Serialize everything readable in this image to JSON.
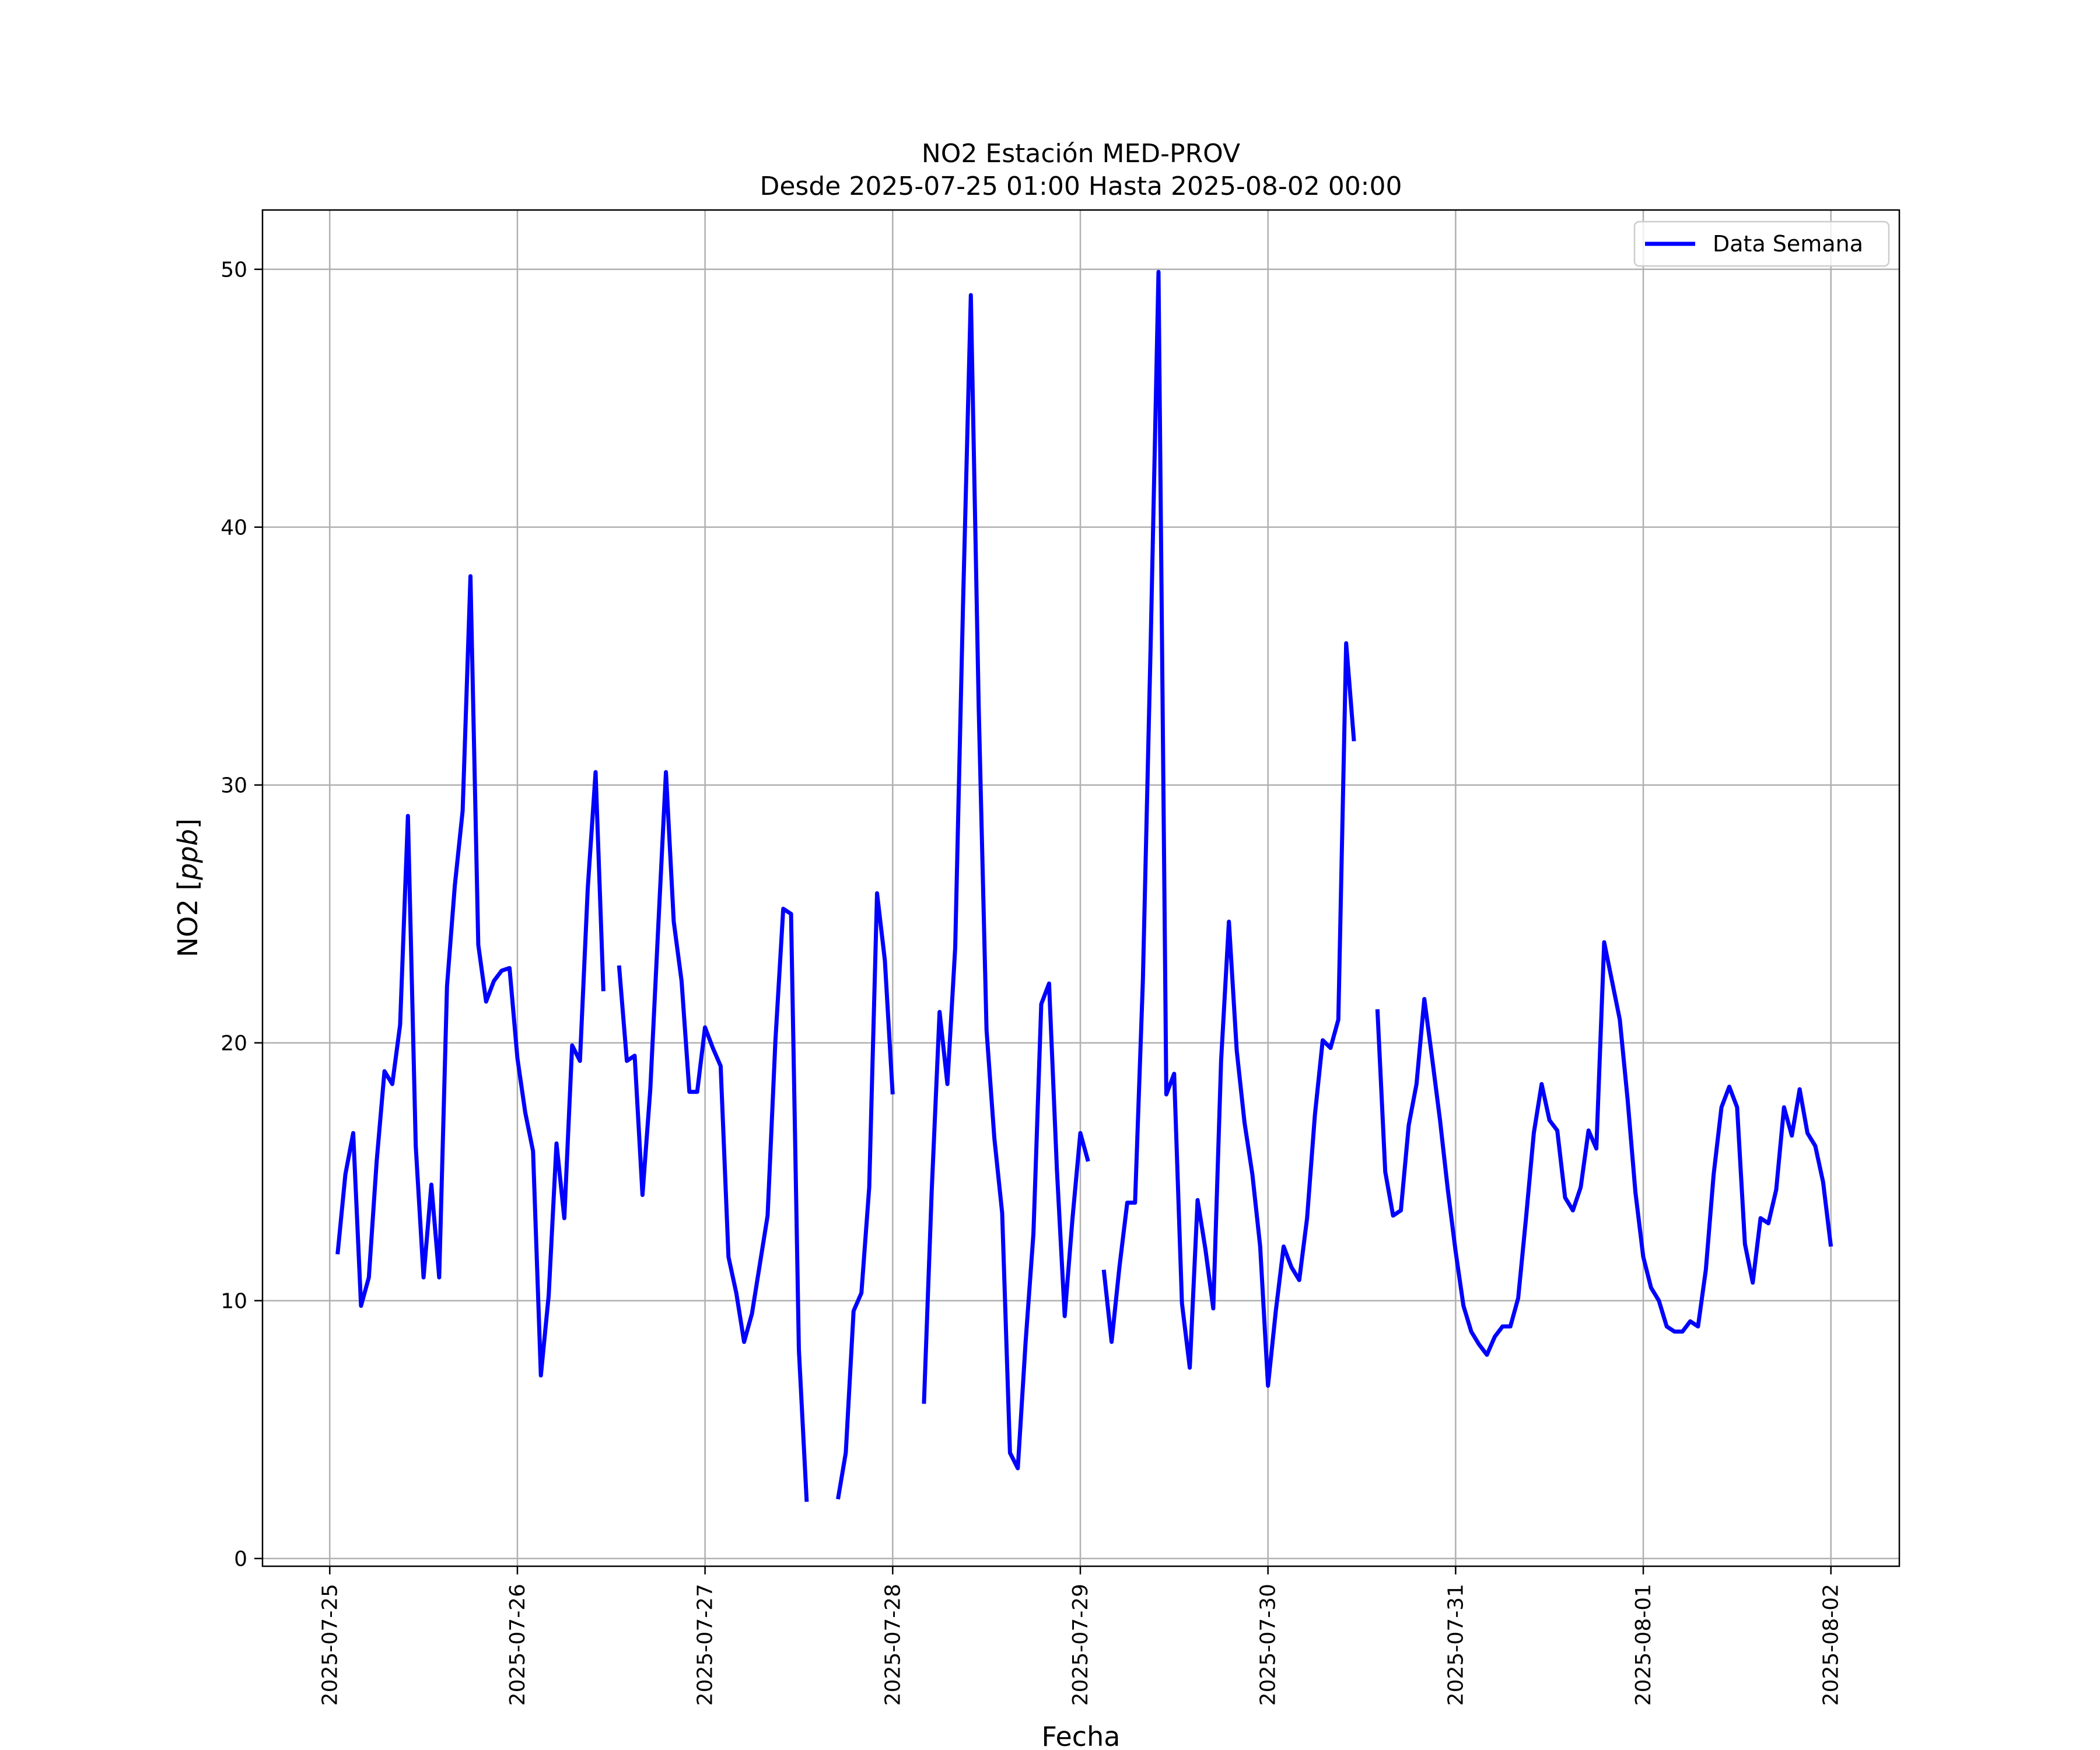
{
  "chart_data": {
    "type": "line",
    "title": "NO2 Estación MED-PROV",
    "subtitle": "Desde 2025-07-25 01:00 Hasta 2025-08-02 00:00",
    "xlabel": "Fecha",
    "ylabel": "NO2 [ppb]",
    "xlim": [
      "2025-07-24 15:24",
      "2025-08-02 08:45"
    ],
    "ylim": [
      -0.3,
      52.3
    ],
    "x_tick_labels": [
      "2025-07-25",
      "2025-07-26",
      "2025-07-27",
      "2025-07-28",
      "2025-07-29",
      "2025-07-30",
      "2025-07-31",
      "2025-08-01",
      "2025-08-02"
    ],
    "y_ticks": [
      0,
      10,
      20,
      30,
      40,
      50
    ],
    "grid": true,
    "legend": {
      "position": "top-right",
      "entries": [
        "Data Semana"
      ]
    },
    "series": [
      {
        "name": "Data Semana",
        "color": "#0000ff",
        "points": [
          [
            "2025-07-25 01:00",
            11.8
          ],
          [
            "2025-07-25 02:00",
            14.9
          ],
          [
            "2025-07-25 03:00",
            16.5
          ],
          [
            "2025-07-25 04:00",
            9.8
          ],
          [
            "2025-07-25 05:00",
            10.9
          ],
          [
            "2025-07-25 06:00",
            15.4
          ],
          [
            "2025-07-25 07:00",
            18.9
          ],
          [
            "2025-07-25 08:00",
            18.4
          ],
          [
            "2025-07-25 09:00",
            20.7
          ],
          [
            "2025-07-25 10:00",
            28.8
          ],
          [
            "2025-07-25 11:00",
            16.0
          ],
          [
            "2025-07-25 12:00",
            10.9
          ],
          [
            "2025-07-25 13:00",
            14.5
          ],
          [
            "2025-07-25 14:00",
            10.9
          ],
          [
            "2025-07-25 15:00",
            22.2
          ],
          [
            "2025-07-25 16:00",
            26.1
          ],
          [
            "2025-07-25 17:00",
            29.0
          ],
          [
            "2025-07-25 18:00",
            38.1
          ],
          [
            "2025-07-25 19:00",
            23.8
          ],
          [
            "2025-07-25 20:00",
            21.6
          ],
          [
            "2025-07-25 21:00",
            22.4
          ],
          [
            "2025-07-25 22:00",
            22.8
          ],
          [
            "2025-07-25 23:00",
            22.9
          ],
          [
            "2025-07-26 00:00",
            19.4
          ],
          [
            "2025-07-26 01:00",
            17.3
          ],
          [
            "2025-07-26 02:00",
            15.8
          ],
          [
            "2025-07-26 03:00",
            7.1
          ],
          [
            "2025-07-26 04:00",
            10.2
          ],
          [
            "2025-07-26 05:00",
            16.1
          ],
          [
            "2025-07-26 06:00",
            13.2
          ],
          [
            "2025-07-26 07:00",
            19.9
          ],
          [
            "2025-07-26 08:00",
            19.3
          ],
          [
            "2025-07-26 09:00",
            26.0
          ],
          [
            "2025-07-26 10:00",
            30.5
          ],
          [
            "2025-07-26 11:00",
            22.0
          ],
          [
            "2025-07-26 12:00",
            null
          ],
          [
            "2025-07-26 13:00",
            23.0
          ],
          [
            "2025-07-26 14:00",
            19.3
          ],
          [
            "2025-07-26 15:00",
            19.5
          ],
          [
            "2025-07-26 16:00",
            14.1
          ],
          [
            "2025-07-26 17:00",
            18.2
          ],
          [
            "2025-07-26 18:00",
            24.4
          ],
          [
            "2025-07-26 19:00",
            30.5
          ],
          [
            "2025-07-26 20:00",
            24.7
          ],
          [
            "2025-07-26 21:00",
            22.4
          ],
          [
            "2025-07-26 22:00",
            18.1
          ],
          [
            "2025-07-26 23:00",
            18.1
          ],
          [
            "2025-07-27 00:00",
            20.6
          ],
          [
            "2025-07-27 01:00",
            19.8
          ],
          [
            "2025-07-27 02:00",
            19.1
          ],
          [
            "2025-07-27 03:00",
            11.7
          ],
          [
            "2025-07-27 04:00",
            10.3
          ],
          [
            "2025-07-27 05:00",
            8.4
          ],
          [
            "2025-07-27 06:00",
            9.5
          ],
          [
            "2025-07-27 07:00",
            11.4
          ],
          [
            "2025-07-27 08:00",
            13.3
          ],
          [
            "2025-07-27 09:00",
            20.1
          ],
          [
            "2025-07-27 10:00",
            25.2
          ],
          [
            "2025-07-27 11:00",
            25.0
          ],
          [
            "2025-07-27 12:00",
            8.1
          ],
          [
            "2025-07-27 13:00",
            2.2
          ],
          [
            "2025-07-27 14:00",
            null
          ],
          [
            "2025-07-27 15:00",
            null
          ],
          [
            "2025-07-27 16:00",
            null
          ],
          [
            "2025-07-27 17:00",
            2.3
          ],
          [
            "2025-07-27 18:00",
            4.1
          ],
          [
            "2025-07-27 19:00",
            9.6
          ],
          [
            "2025-07-27 20:00",
            10.3
          ],
          [
            "2025-07-27 21:00",
            14.4
          ],
          [
            "2025-07-27 22:00",
            25.8
          ],
          [
            "2025-07-27 23:00",
            23.2
          ],
          [
            "2025-07-28 00:00",
            18.0
          ],
          [
            "2025-07-28 01:00",
            null
          ],
          [
            "2025-07-28 02:00",
            null
          ],
          [
            "2025-07-28 03:00",
            null
          ],
          [
            "2025-07-28 04:00",
            6.0
          ],
          [
            "2025-07-28 05:00",
            14.3
          ],
          [
            "2025-07-28 06:00",
            21.2
          ],
          [
            "2025-07-28 07:00",
            18.4
          ],
          [
            "2025-07-28 08:00",
            23.7
          ],
          [
            "2025-07-28 09:00",
            37.0
          ],
          [
            "2025-07-28 10:00",
            49.0
          ],
          [
            "2025-07-28 11:00",
            33.0
          ],
          [
            "2025-07-28 12:00",
            20.5
          ],
          [
            "2025-07-28 13:00",
            16.3
          ],
          [
            "2025-07-28 14:00",
            13.4
          ],
          [
            "2025-07-28 15:00",
            4.1
          ],
          [
            "2025-07-28 16:00",
            3.5
          ],
          [
            "2025-07-28 17:00",
            8.4
          ],
          [
            "2025-07-28 18:00",
            12.6
          ],
          [
            "2025-07-28 19:00",
            21.5
          ],
          [
            "2025-07-28 20:00",
            22.3
          ],
          [
            "2025-07-28 21:00",
            15.1
          ],
          [
            "2025-07-28 22:00",
            9.4
          ],
          [
            "2025-07-28 23:00",
            13.2
          ],
          [
            "2025-07-29 00:00",
            16.5
          ],
          [
            "2025-07-29 01:00",
            15.4
          ],
          [
            "2025-07-29 02:00",
            null
          ],
          [
            "2025-07-29 03:00",
            11.2
          ],
          [
            "2025-07-29 04:00",
            8.4
          ],
          [
            "2025-07-29 05:00",
            11.3
          ],
          [
            "2025-07-29 06:00",
            13.8
          ],
          [
            "2025-07-29 07:00",
            13.8
          ],
          [
            "2025-07-29 08:00",
            22.4
          ],
          [
            "2025-07-29 09:00",
            35.5
          ],
          [
            "2025-07-29 10:00",
            49.9
          ],
          [
            "2025-07-29 11:00",
            18.0
          ],
          [
            "2025-07-29 12:00",
            18.8
          ],
          [
            "2025-07-29 13:00",
            9.9
          ],
          [
            "2025-07-29 14:00",
            7.4
          ],
          [
            "2025-07-29 15:00",
            13.9
          ],
          [
            "2025-07-29 16:00",
            12.0
          ],
          [
            "2025-07-29 17:00",
            9.7
          ],
          [
            "2025-07-29 18:00",
            19.3
          ],
          [
            "2025-07-29 19:00",
            24.7
          ],
          [
            "2025-07-29 20:00",
            19.7
          ],
          [
            "2025-07-29 21:00",
            16.9
          ],
          [
            "2025-07-29 22:00",
            14.9
          ],
          [
            "2025-07-29 23:00",
            12.1
          ],
          [
            "2025-07-30 00:00",
            6.7
          ],
          [
            "2025-07-30 01:00",
            9.6
          ],
          [
            "2025-07-30 02:00",
            12.1
          ],
          [
            "2025-07-30 03:00",
            11.3
          ],
          [
            "2025-07-30 04:00",
            10.8
          ],
          [
            "2025-07-30 05:00",
            13.2
          ],
          [
            "2025-07-30 06:00",
            17.2
          ],
          [
            "2025-07-30 07:00",
            20.1
          ],
          [
            "2025-07-30 08:00",
            19.8
          ],
          [
            "2025-07-30 09:00",
            20.9
          ],
          [
            "2025-07-30 10:00",
            35.5
          ],
          [
            "2025-07-30 11:00",
            31.7
          ],
          [
            "2025-07-30 12:00",
            null
          ],
          [
            "2025-07-30 13:00",
            null
          ],
          [
            "2025-07-30 14:00",
            21.3
          ],
          [
            "2025-07-30 15:00",
            15.0
          ],
          [
            "2025-07-30 16:00",
            13.3
          ],
          [
            "2025-07-30 17:00",
            13.5
          ],
          [
            "2025-07-30 18:00",
            16.8
          ],
          [
            "2025-07-30 19:00",
            18.4
          ],
          [
            "2025-07-30 20:00",
            21.7
          ],
          [
            "2025-07-30 21:00",
            19.4
          ],
          [
            "2025-07-30 22:00",
            17.0
          ],
          [
            "2025-07-30 23:00",
            14.3
          ],
          [
            "2025-07-31 00:00",
            11.9
          ],
          [
            "2025-07-31 01:00",
            9.8
          ],
          [
            "2025-07-31 02:00",
            8.8
          ],
          [
            "2025-07-31 03:00",
            8.3
          ],
          [
            "2025-07-31 04:00",
            7.9
          ],
          [
            "2025-07-31 05:00",
            8.6
          ],
          [
            "2025-07-31 06:00",
            9.0
          ],
          [
            "2025-07-31 07:00",
            9.0
          ],
          [
            "2025-07-31 08:00",
            10.1
          ],
          [
            "2025-07-31 09:00",
            13.2
          ],
          [
            "2025-07-31 10:00",
            16.5
          ],
          [
            "2025-07-31 11:00",
            18.4
          ],
          [
            "2025-07-31 12:00",
            17.0
          ],
          [
            "2025-07-31 13:00",
            16.6
          ],
          [
            "2025-07-31 14:00",
            14.0
          ],
          [
            "2025-07-31 15:00",
            13.5
          ],
          [
            "2025-07-31 16:00",
            14.4
          ],
          [
            "2025-07-31 17:00",
            16.6
          ],
          [
            "2025-07-31 18:00",
            15.9
          ],
          [
            "2025-07-31 19:00",
            23.9
          ],
          [
            "2025-07-31 20:00",
            22.4
          ],
          [
            "2025-07-31 21:00",
            20.9
          ],
          [
            "2025-07-31 22:00",
            17.8
          ],
          [
            "2025-07-31 23:00",
            14.2
          ],
          [
            "2025-08-01 00:00",
            11.7
          ],
          [
            "2025-08-01 01:00",
            10.5
          ],
          [
            "2025-08-01 02:00",
            10.0
          ],
          [
            "2025-08-01 03:00",
            9.0
          ],
          [
            "2025-08-01 04:00",
            8.8
          ],
          [
            "2025-08-01 05:00",
            8.8
          ],
          [
            "2025-08-01 06:00",
            9.2
          ],
          [
            "2025-08-01 07:00",
            9.0
          ],
          [
            "2025-08-01 08:00",
            11.2
          ],
          [
            "2025-08-01 09:00",
            14.9
          ],
          [
            "2025-08-01 10:00",
            17.5
          ],
          [
            "2025-08-01 11:00",
            18.3
          ],
          [
            "2025-08-01 12:00",
            17.5
          ],
          [
            "2025-08-01 13:00",
            12.2
          ],
          [
            "2025-08-01 14:00",
            10.7
          ],
          [
            "2025-08-01 15:00",
            13.2
          ],
          [
            "2025-08-01 16:00",
            13.0
          ],
          [
            "2025-08-01 17:00",
            14.3
          ],
          [
            "2025-08-01 18:00",
            17.5
          ],
          [
            "2025-08-01 19:00",
            16.4
          ],
          [
            "2025-08-01 20:00",
            18.2
          ],
          [
            "2025-08-01 21:00",
            16.5
          ],
          [
            "2025-08-01 22:00",
            16.0
          ],
          [
            "2025-08-01 23:00",
            14.6
          ],
          [
            "2025-08-02 00:00",
            12.1
          ]
        ]
      }
    ]
  }
}
